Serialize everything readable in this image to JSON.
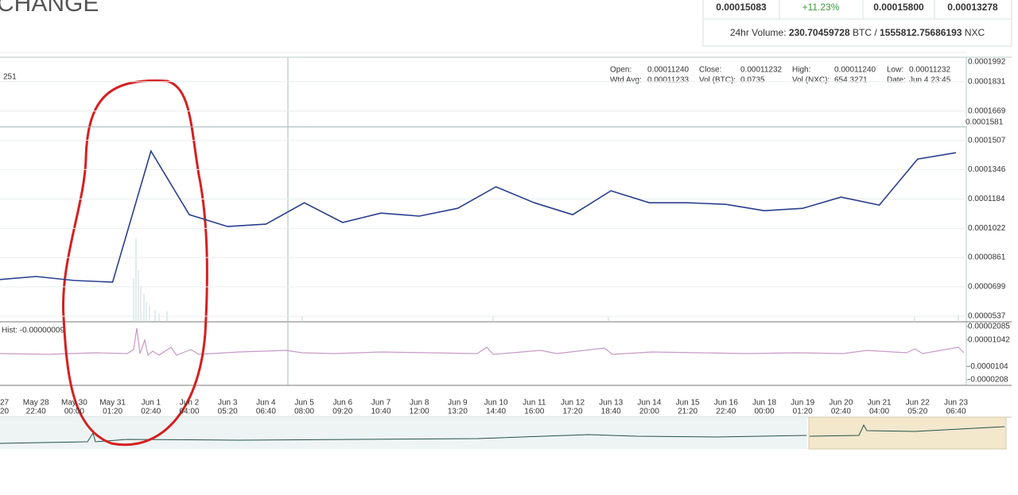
{
  "header": {
    "title": "CHANGE"
  },
  "ticker": {
    "cells": [
      "0.00015083",
      "+11.23%",
      "0.00015800",
      "0.00013278"
    ],
    "volume": {
      "label": "24hr Volume:",
      "btc": "230.70459728",
      "btc_unit": "BTC",
      "sep": "/",
      "nxc": "1555812.75686193",
      "nxc_unit": "NXC"
    }
  },
  "info": {
    "open_label": "Open:",
    "open": "0.00011240",
    "close_label": "Close:",
    "close": "0.00011232",
    "high_label": "High:",
    "high": "0.00011240",
    "low_label": "Low:",
    "low": "0.00011232",
    "wtd_label": "Wtd Avg:",
    "wtd": "0.00011233",
    "volbtc_label": "Vol (BTC):",
    "volbtc": "0.0735",
    "volnxc_label": "Vol (NXC):",
    "volnxc": "654.3271",
    "date_label": "Date:",
    "date": "Jun 4 23:45"
  },
  "chart_data": {
    "type": "line",
    "legend_fragment": "251",
    "categories": [
      [
        "27",
        "20"
      ],
      [
        "May 28",
        "22:40"
      ],
      [
        "May 30",
        "00:00"
      ],
      [
        "May 31",
        "01:20"
      ],
      [
        "Jun 1",
        "02:40"
      ],
      [
        "Jun 2",
        "04:00"
      ],
      [
        "Jun 3",
        "05:20"
      ],
      [
        "Jun 4",
        "06:40"
      ],
      [
        "Jun 5",
        "08:00"
      ],
      [
        "Jun 6",
        "09:20"
      ],
      [
        "Jun 7",
        "10:40"
      ],
      [
        "Jun 8",
        "12:00"
      ],
      [
        "Jun 9",
        "13:20"
      ],
      [
        "Jun 10",
        "14:40"
      ],
      [
        "Jun 11",
        "16:00"
      ],
      [
        "Jun 12",
        "17:20"
      ],
      [
        "Jun 13",
        "18:40"
      ],
      [
        "Jun 14",
        "20:00"
      ],
      [
        "Jun 15",
        "21:20"
      ],
      [
        "Jun 16",
        "22:40"
      ],
      [
        "Jun 18",
        "00:00"
      ],
      [
        "Jun 19",
        "01:20"
      ],
      [
        "Jun 20",
        "02:40"
      ],
      [
        "Jun 21",
        "04:00"
      ],
      [
        "Jun 22",
        "05:20"
      ],
      [
        "Jun 23",
        "06:40"
      ]
    ],
    "values": [
      7.38e-05,
      7.56e-05,
      7.34e-05,
      7.25e-05,
      0.0001448,
      0.0001097,
      0.0001032,
      0.0001045,
      0.0001163,
      0.0001054,
      0.0001106,
      0.0001089,
      0.0001132,
      0.0001251,
      0.0001163,
      0.0001097,
      0.0001229,
      0.0001163,
      0.0001163,
      0.0001154,
      0.0001119,
      0.0001132,
      0.0001194,
      0.000115,
      0.0001404,
      0.0001439
    ],
    "color": "#2b3f8c",
    "ylim": [
      5.37e-05,
      0.0001992
    ],
    "yticks": [
      5.37e-05,
      6.99e-05,
      8.61e-05,
      0.0001022,
      0.0001184,
      0.0001346,
      0.0001507,
      0.0001669,
      0.0001831,
      0.0001992
    ],
    "current_price": 0.0001581,
    "hist": {
      "label": "Hist: -0.00000009",
      "ylim": [
        -2.52e-05,
        2.46e-05
      ],
      "yticks": [
        2.085e-05,
        1.042e-05,
        -1.04e-05,
        -2.08e-05
      ]
    }
  }
}
